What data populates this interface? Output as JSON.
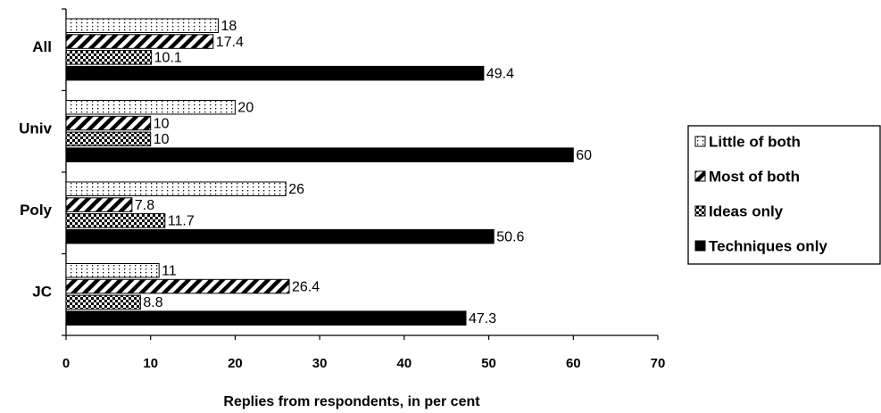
{
  "chart_data": {
    "type": "bar",
    "orientation": "horizontal",
    "categories": [
      "All",
      "Univ",
      "Poly",
      "JC"
    ],
    "series": [
      {
        "name": "Little of both",
        "values": [
          18,
          20,
          26,
          11
        ],
        "pattern": "dots"
      },
      {
        "name": "Most of both",
        "values": [
          17.4,
          10,
          7.8,
          26.4
        ],
        "pattern": "diagonal"
      },
      {
        "name": "Ideas only",
        "values": [
          10.1,
          10,
          11.7,
          8.8
        ],
        "pattern": "checker"
      },
      {
        "name": "Techniques only",
        "values": [
          49.4,
          60,
          50.6,
          47.3
        ],
        "pattern": "solid"
      }
    ],
    "data_labels": [
      [
        "18",
        "20",
        "26",
        "11"
      ],
      [
        "17.4",
        "10",
        "7.8",
        "26.4"
      ],
      [
        "10.1",
        "10",
        "11.7",
        "8.8"
      ],
      [
        "49.4",
        "60",
        "50.6",
        "47.3"
      ]
    ],
    "xlabel": "Replies from respondents, in per cent",
    "ylabel": "",
    "xlim": [
      0,
      70
    ],
    "xticks": [
      "0",
      "10",
      "20",
      "30",
      "40",
      "50",
      "60",
      "70"
    ],
    "grid": false,
    "legend_position": "right"
  }
}
